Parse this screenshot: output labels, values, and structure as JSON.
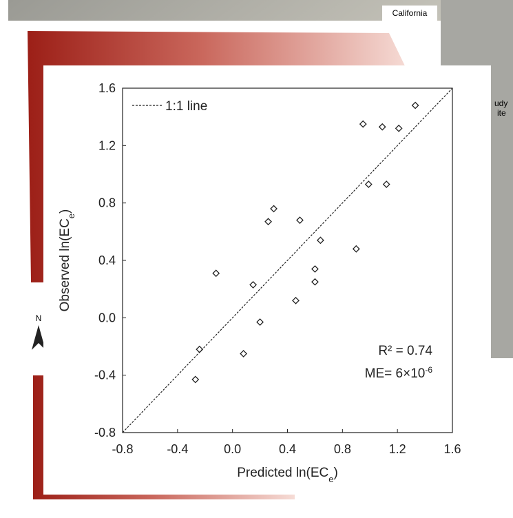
{
  "map_labels": {
    "state": "California",
    "site_a": "udy",
    "site_b": "ite",
    "north": "N"
  },
  "chart_data": {
    "type": "scatter",
    "x_label": [
      "Predicted ln(EC",
      "e",
      ")"
    ],
    "y_label": [
      "Observed ln(EC",
      "e",
      ")"
    ],
    "legend": "1:1 line",
    "annotations": {
      "r2": "R² = 0.74",
      "me": [
        "ME= 6×10",
        "-6"
      ]
    },
    "xlim": [
      -0.8,
      1.6
    ],
    "ylim": [
      -0.8,
      1.6
    ],
    "xticks": [
      -0.8,
      -0.4,
      {
        "value": 0,
        "label": "0.0"
      },
      0.4,
      0.8,
      1.2,
      1.6
    ],
    "yticks": [
      -0.8,
      -0.4,
      {
        "value": 0,
        "label": "0.0"
      },
      0.4,
      0.8,
      1.2,
      1.6
    ],
    "x": [
      1.33,
      0.95,
      1.21,
      1.09,
      0.99,
      1.12,
      0.3,
      0.26,
      0.49,
      0.64,
      0.9,
      0.6,
      0.6,
      -0.12,
      0.15,
      0.46,
      0.2,
      0.08,
      -0.24,
      -0.27
    ],
    "y": [
      1.48,
      1.35,
      1.32,
      1.33,
      0.93,
      0.93,
      0.76,
      0.67,
      0.68,
      0.54,
      0.48,
      0.34,
      0.25,
      0.31,
      0.23,
      0.12,
      -0.03,
      -0.25,
      -0.22,
      -0.43
    ],
    "color": "#222222"
  }
}
